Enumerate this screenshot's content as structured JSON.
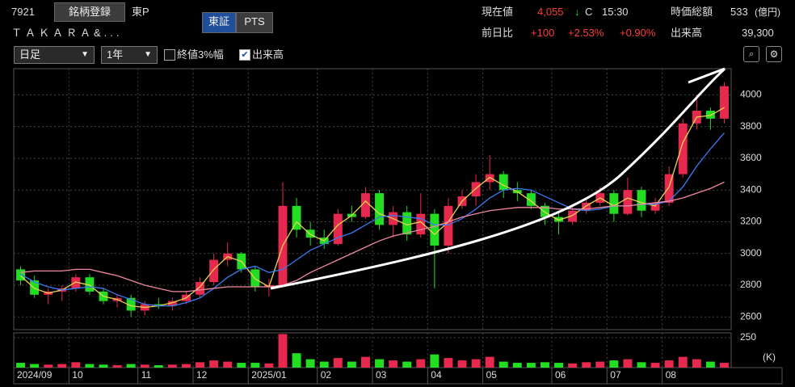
{
  "header": {
    "code": "7921",
    "register_button": "銘柄登録",
    "market": "東P",
    "name": "ＴＡＫＡＲＡ&...",
    "tabs": [
      "東証",
      "PTS"
    ],
    "price_label": "現在値",
    "price": "4,055",
    "arrow": "↓",
    "price_flag": "C",
    "time": "15:30",
    "cap_label": "時価総額",
    "cap": "533",
    "cap_unit": "(億円)",
    "change_label": "前日比",
    "change": "+100",
    "change_pct": "+2.53%",
    "change_pct2": "+0.90%",
    "volume_label": "出来高",
    "volume": "39,300"
  },
  "controls": {
    "period": "日足",
    "range": "1年",
    "check_close": "終値3%幅",
    "check_volume": "出来高"
  },
  "chart_data": {
    "type": "candlestick",
    "up_color": "#e8294f",
    "down_color": "#22dd22",
    "grid": true,
    "categories": [
      "2024/09",
      null,
      null,
      null,
      "10",
      null,
      null,
      null,
      null,
      "11",
      null,
      null,
      null,
      "12",
      null,
      null,
      null,
      "2025/01",
      null,
      null,
      null,
      null,
      "02",
      null,
      null,
      null,
      "03",
      null,
      null,
      null,
      "04",
      null,
      null,
      null,
      "05",
      null,
      null,
      null,
      null,
      "06",
      null,
      null,
      null,
      "07",
      null,
      null,
      null,
      "08",
      null,
      null,
      null,
      null
    ],
    "open": [
      2900,
      2830,
      2740,
      2760,
      2780,
      2850,
      2760,
      2700,
      2720,
      2640,
      2680,
      2670,
      2700,
      2740,
      2820,
      2960,
      3000,
      2900,
      2790,
      2800,
      3300,
      3150,
      3100,
      3060,
      3250,
      3230,
      3380,
      3180,
      3260,
      3120,
      3250,
      3050,
      3300,
      3360,
      3450,
      3500,
      3400,
      3380,
      3300,
      3230,
      3200,
      3270,
      3320,
      3380,
      3250,
      3400,
      3270,
      3320,
      3500,
      3820,
      3900,
      3850
    ],
    "high": [
      2920,
      2860,
      2780,
      2800,
      2870,
      2870,
      2780,
      2740,
      2740,
      2700,
      2720,
      2720,
      2760,
      2850,
      3000,
      3070,
      3010,
      2920,
      2840,
      3450,
      3350,
      3200,
      3150,
      3280,
      3300,
      3420,
      3400,
      3300,
      3300,
      3380,
      3280,
      3350,
      3400,
      3500,
      3620,
      3520,
      3450,
      3400,
      3320,
      3260,
      3300,
      3350,
      3420,
      3400,
      3480,
      3420,
      3350,
      3550,
      3850,
      4000,
      3920,
      4080
    ],
    "low": [
      2800,
      2720,
      2680,
      2700,
      2760,
      2740,
      2680,
      2660,
      2600,
      2610,
      2650,
      2640,
      2680,
      2720,
      2800,
      2920,
      2880,
      2760,
      2730,
      2790,
      3100,
      3050,
      3030,
      3050,
      3200,
      3220,
      3150,
      3100,
      3080,
      3100,
      2780,
      3000,
      3280,
      3300,
      3400,
      3350,
      3330,
      3280,
      3180,
      3120,
      3180,
      3250,
      3300,
      3200,
      3240,
      3230,
      3250,
      3300,
      3480,
      3780,
      3780,
      3820
    ],
    "close": [
      2830,
      2740,
      2760,
      2780,
      2850,
      2760,
      2700,
      2720,
      2640,
      2680,
      2670,
      2700,
      2740,
      2820,
      2960,
      3000,
      2900,
      2790,
      2800,
      3300,
      3150,
      3100,
      3060,
      3250,
      3230,
      3380,
      3180,
      3260,
      3120,
      3250,
      3050,
      3300,
      3360,
      3450,
      3500,
      3400,
      3380,
      3300,
      3230,
      3200,
      3270,
      3320,
      3380,
      3250,
      3400,
      3270,
      3320,
      3500,
      3820,
      3900,
      3850,
      4055
    ],
    "lines": [
      {
        "color": "#e8d44d",
        "values": [
          2860,
          2780,
          2750,
          2770,
          2820,
          2800,
          2730,
          2710,
          2670,
          2660,
          2670,
          2690,
          2720,
          2790,
          2900,
          2980,
          2950,
          2840,
          2790,
          3050,
          3200,
          3120,
          3080,
          3180,
          3240,
          3330,
          3250,
          3220,
          3180,
          3200,
          3120,
          3200,
          3330,
          3410,
          3480,
          3430,
          3390,
          3330,
          3260,
          3210,
          3240,
          3300,
          3350,
          3300,
          3350,
          3320,
          3300,
          3420,
          3700,
          3860,
          3870,
          3920
        ]
      },
      {
        "color": "#3a7bf0",
        "values": [
          2870,
          2820,
          2790,
          2770,
          2780,
          2790,
          2780,
          2740,
          2710,
          2680,
          2670,
          2670,
          2690,
          2720,
          2780,
          2850,
          2900,
          2920,
          2880,
          2900,
          2960,
          3020,
          3060,
          3100,
          3130,
          3180,
          3230,
          3240,
          3230,
          3220,
          3180,
          3180,
          3220,
          3280,
          3350,
          3400,
          3410,
          3400,
          3360,
          3320,
          3280,
          3270,
          3280,
          3300,
          3300,
          3310,
          3310,
          3330,
          3420,
          3550,
          3660,
          3760
        ]
      },
      {
        "color": "#f08aa0",
        "values": [
          2880,
          2890,
          2890,
          2890,
          2900,
          2900,
          2880,
          2860,
          2830,
          2800,
          2780,
          2760,
          2760,
          2770,
          2780,
          2790,
          2790,
          2790,
          2790,
          2800,
          2830,
          2880,
          2920,
          2960,
          3000,
          3040,
          3080,
          3110,
          3130,
          3150,
          3170,
          3200,
          3230,
          3250,
          3270,
          3280,
          3290,
          3290,
          3290,
          3280,
          3280,
          3280,
          3290,
          3300,
          3300,
          3310,
          3320,
          3330,
          3350,
          3380,
          3410,
          3450
        ]
      }
    ],
    "ylim": [
      2520,
      4165
    ],
    "yticks": [
      2600,
      2800,
      3000,
      3200,
      3400,
      3600,
      3800,
      4000
    ],
    "volume": {
      "values": [
        40,
        30,
        25,
        30,
        45,
        30,
        25,
        20,
        30,
        25,
        20,
        25,
        30,
        45,
        60,
        50,
        40,
        40,
        35,
        280,
        120,
        70,
        50,
        80,
        50,
        90,
        70,
        60,
        50,
        70,
        110,
        80,
        60,
        70,
        90,
        50,
        40,
        40,
        45,
        40,
        35,
        45,
        50,
        60,
        70,
        45,
        40,
        60,
        90,
        70,
        50,
        40
      ],
      "ylim": [
        0,
        290
      ],
      "yticks": [
        250
      ],
      "unit_label": "(K)"
    }
  }
}
